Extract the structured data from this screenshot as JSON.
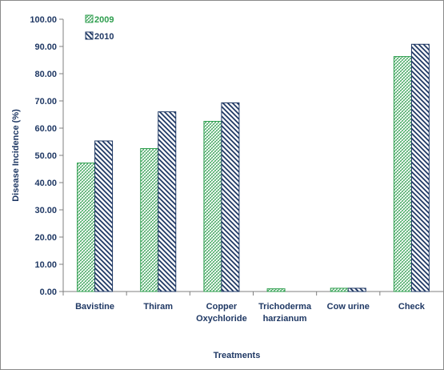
{
  "chart_data": {
    "type": "bar",
    "title": "",
    "xlabel": "Treatments",
    "ylabel": "Disease Incidence (%)",
    "ylim": [
      0,
      100
    ],
    "yticks": [
      "0.00",
      "10.00",
      "20.00",
      "30.00",
      "40.00",
      "50.00",
      "60.00",
      "70.00",
      "80.00",
      "90.00",
      "100.00"
    ],
    "categories": [
      [
        "Bavistine"
      ],
      [
        "Thiram"
      ],
      [
        "Copper",
        "Oxychloride"
      ],
      [
        "Trichoderma",
        "harzianum"
      ],
      [
        "Cow urine"
      ],
      [
        "Check"
      ]
    ],
    "series": [
      {
        "name": "2009",
        "values": [
          47.2,
          52.5,
          62.5,
          1.0,
          1.2,
          86.3
        ],
        "color": "#2e9e4e",
        "label_color": "#2e9e4e",
        "pattern": "crosshatch"
      },
      {
        "name": "2010",
        "values": [
          55.3,
          66.0,
          69.3,
          0.0,
          1.2,
          90.8
        ],
        "color": "#1f3864",
        "label_color": "#1f3864",
        "pattern": "diagonal"
      }
    ],
    "legend_position": "top-left",
    "grid": false
  }
}
